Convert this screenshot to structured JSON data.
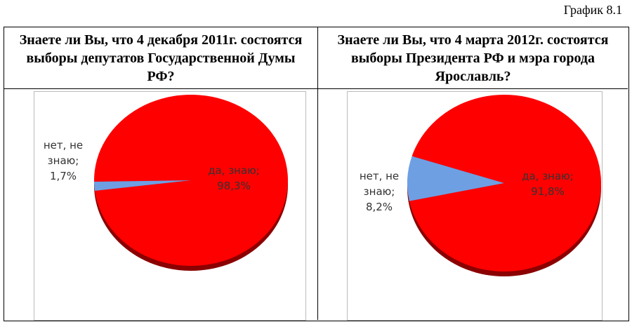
{
  "label": "График 8.1",
  "chart_data": [
    {
      "type": "pie",
      "title": "Знаете ли Вы, что 4 декабря 2011г. состоятся выборы депутатов Государственной Думы РФ?",
      "categories": [
        "да, знаю;",
        "нет, не знаю;"
      ],
      "values": [
        98.3,
        1.7
      ],
      "value_labels": [
        "98,3%",
        "1,7%"
      ],
      "colors": [
        "#ff0000",
        "#6f9fe3"
      ]
    },
    {
      "type": "pie",
      "title": "Знаете ли Вы, что 4 марта 2012г. состоятся выборы Президента РФ и мэра города Ярославль?",
      "categories": [
        "да, знаю;",
        "нет, не знаю;"
      ],
      "values": [
        91.8,
        8.2
      ],
      "value_labels": [
        "91,8%",
        "8,2%"
      ],
      "colors": [
        "#ff0000",
        "#6f9fe3"
      ]
    }
  ]
}
